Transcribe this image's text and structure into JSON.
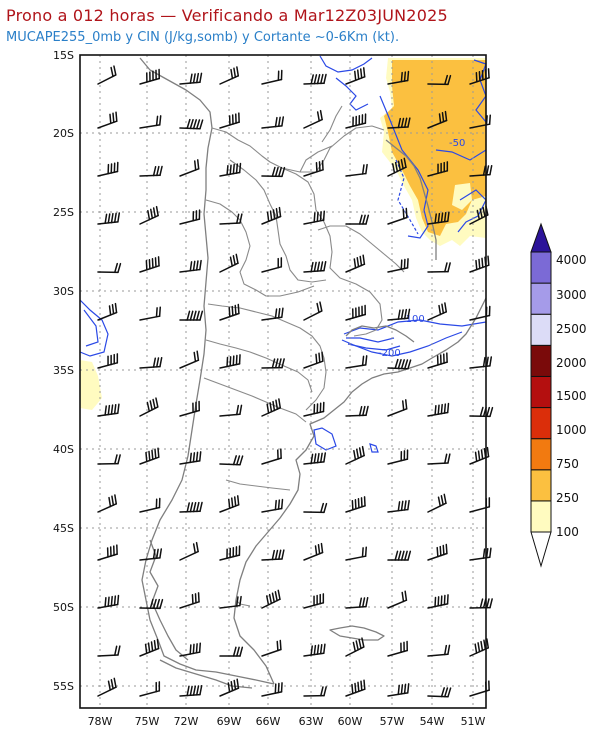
{
  "title": {
    "line1": "Prono a 012 horas — Verificando a Mar12Z03JUN2025",
    "line2": "MUCAPE255_0mb y CIN (J/kg,somb) y Cortante ~0-6Km (kt)."
  },
  "axes": {
    "lat_labels": [
      "15S",
      "20S",
      "25S",
      "30S",
      "35S",
      "40S",
      "45S",
      "50S",
      "55S"
    ],
    "lon_labels": [
      "78W",
      "75W",
      "72W",
      "69W",
      "66W",
      "63W",
      "60W",
      "57W",
      "54W",
      "51W"
    ]
  },
  "colorbar": {
    "levels": [
      "100",
      "250",
      "750",
      "1000",
      "1500",
      "2000",
      "2500",
      "3000",
      "4000"
    ],
    "colors": [
      "#fffbc0",
      "#fbc040",
      "#f27a10",
      "#db2e0a",
      "#b40f0f",
      "#7a0a0a",
      "#dcdcf7",
      "#a59be9",
      "#7b6ad6",
      "#4b34b8",
      "#2c1499"
    ]
  },
  "cin_labels": [
    "-50",
    "-100",
    "-200"
  ],
  "colors": {
    "title": "#b0141a",
    "subtitle": "#2a7fc8",
    "coast": "#7f7f7f",
    "cin_contour": "#2b49e6",
    "grid": "#9a9a9a"
  }
}
